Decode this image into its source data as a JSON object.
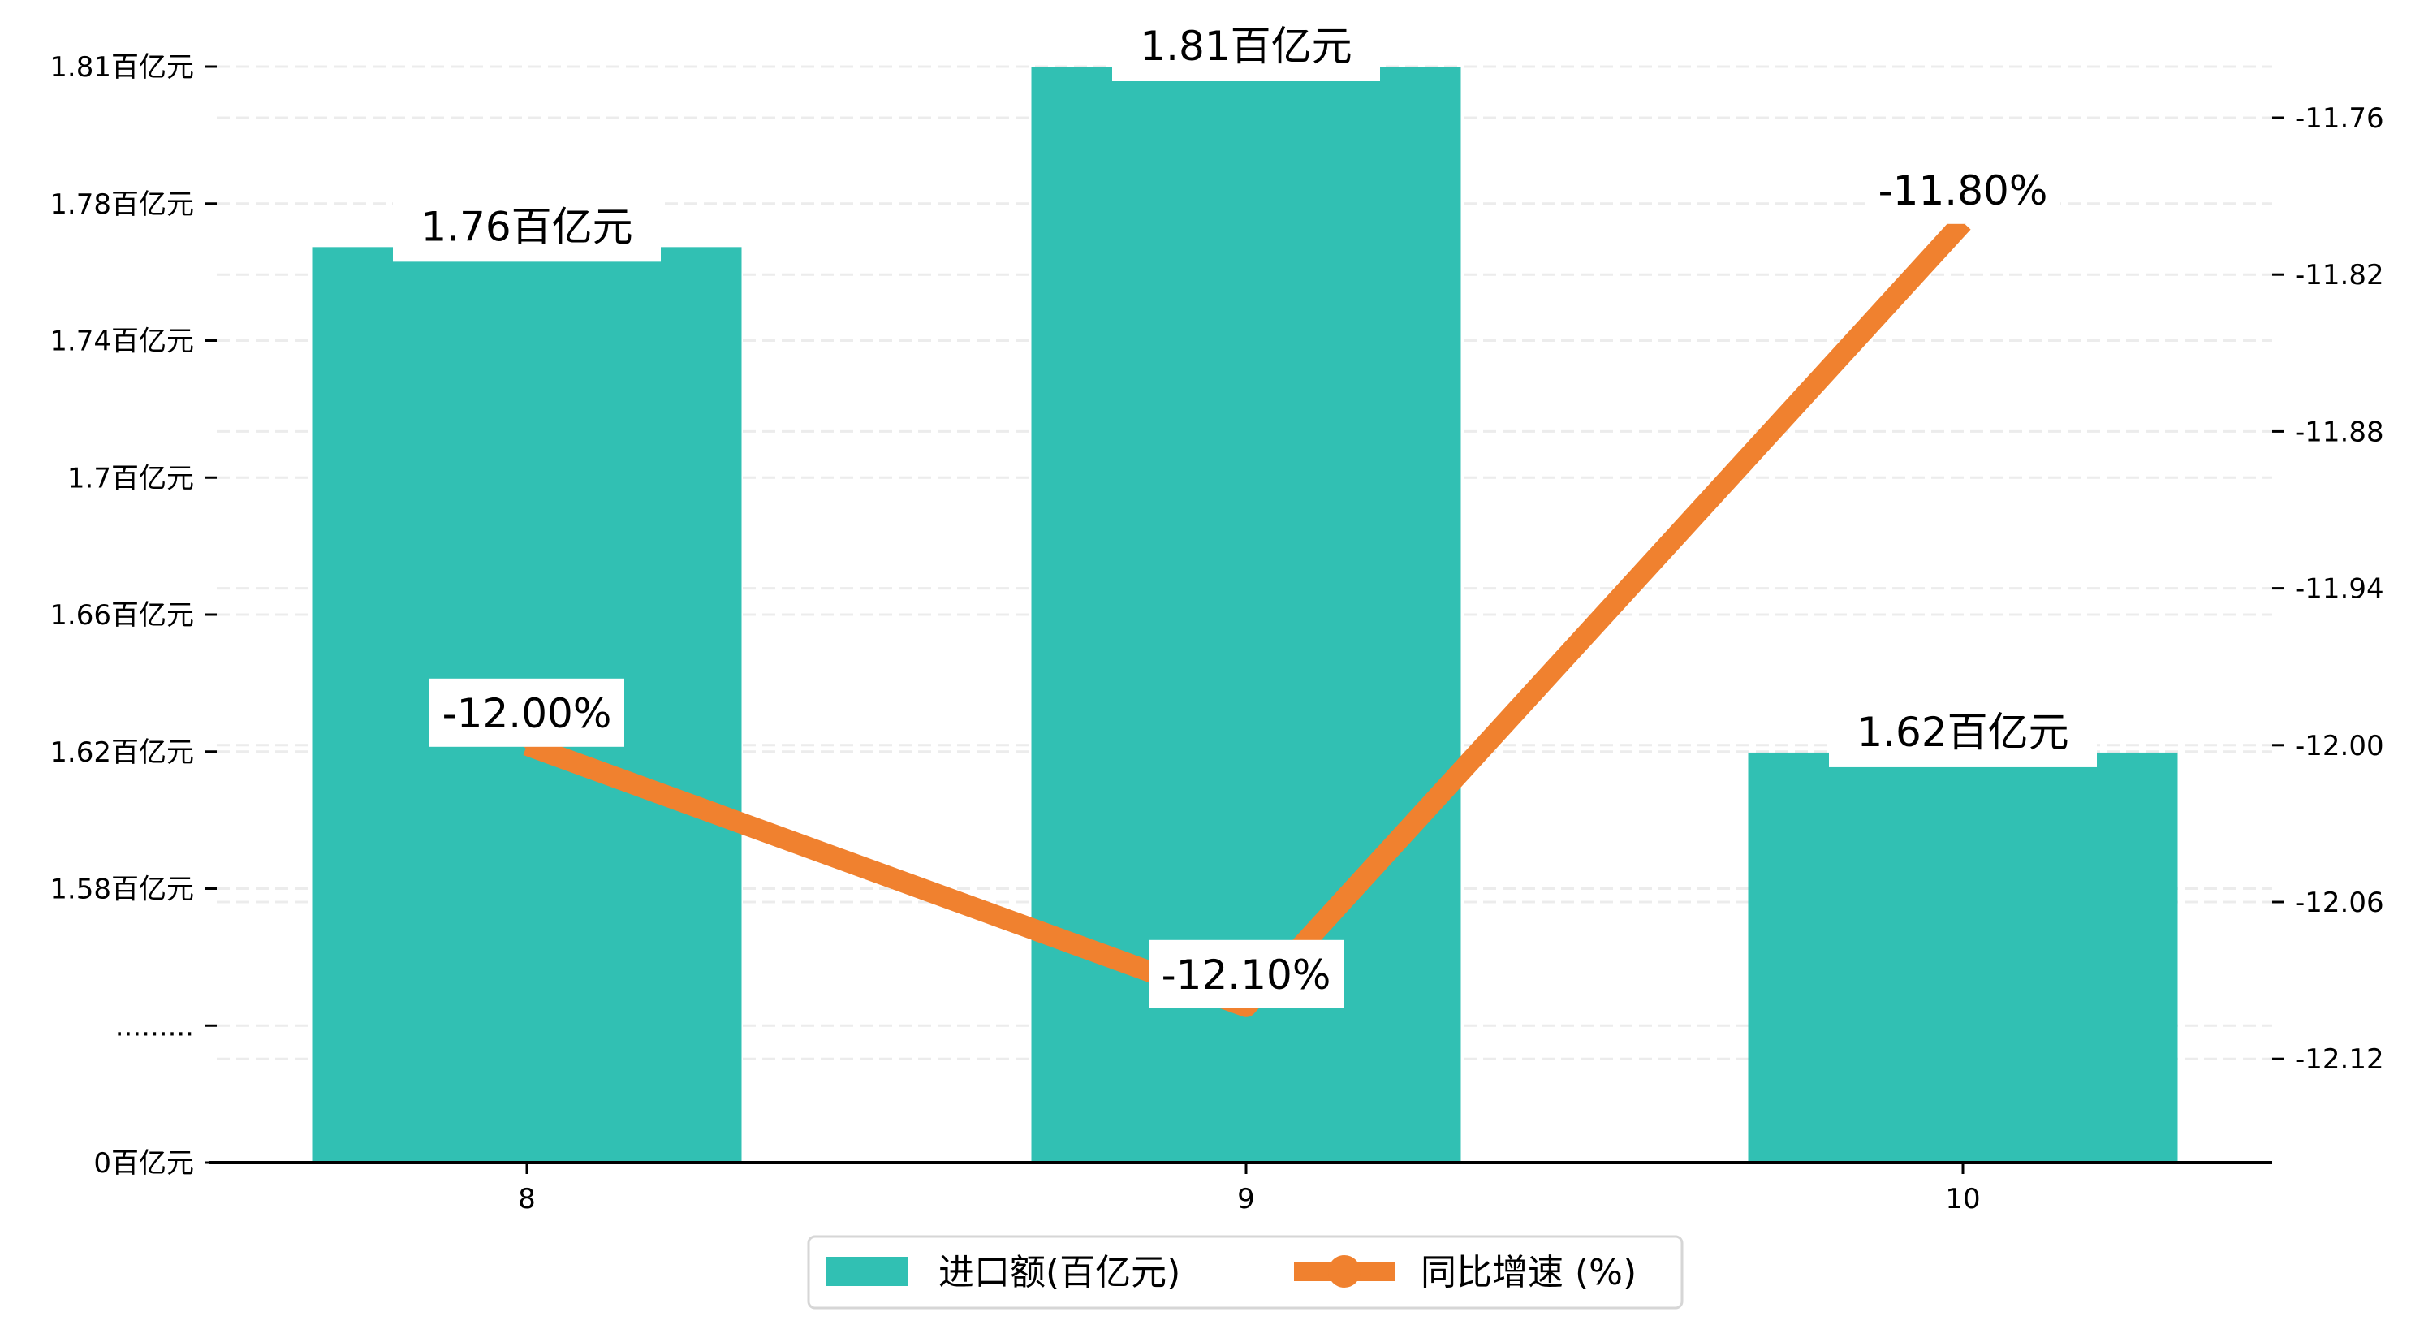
{
  "chart_data": {
    "type": "bar+line",
    "categories": [
      "8",
      "9",
      "10"
    ],
    "series": [
      {
        "name": "进口额(百亿元)",
        "type": "bar",
        "axis": "left",
        "values": [
          1.76,
          1.81,
          1.62
        ],
        "labels": [
          "1.76百亿元",
          "1.81百亿元",
          "1.62百亿元"
        ],
        "color": "#31c0b3"
      },
      {
        "name": "同比增速 (%)",
        "type": "line",
        "axis": "right",
        "values": [
          -12.0,
          -12.1,
          -11.8
        ],
        "labels": [
          "-12.00%",
          "-12.10%",
          "-11.80%"
        ],
        "color": "#f0812f"
      }
    ],
    "left_axis": {
      "tick_labels": [
        "1.81百亿元",
        "1.78百亿元",
        "1.74百亿元",
        "1.7百亿元",
        "1.66百亿元",
        "1.62百亿元",
        "1.58百亿元",
        ".........",
        "0百亿元"
      ],
      "broken": true
    },
    "right_axis": {
      "ticks": [
        -11.76,
        -11.82,
        -11.88,
        -11.94,
        -12.0,
        -12.06,
        -12.12
      ],
      "tick_labels": [
        "-11.76",
        "-11.82",
        "-11.88",
        "-11.94",
        "-12.00",
        "-12.06",
        "-12.12"
      ]
    },
    "grid": true,
    "legend": {
      "position": "bottom-center",
      "entries": [
        "进口额(百亿元)",
        "同比增速 (%)"
      ]
    }
  }
}
